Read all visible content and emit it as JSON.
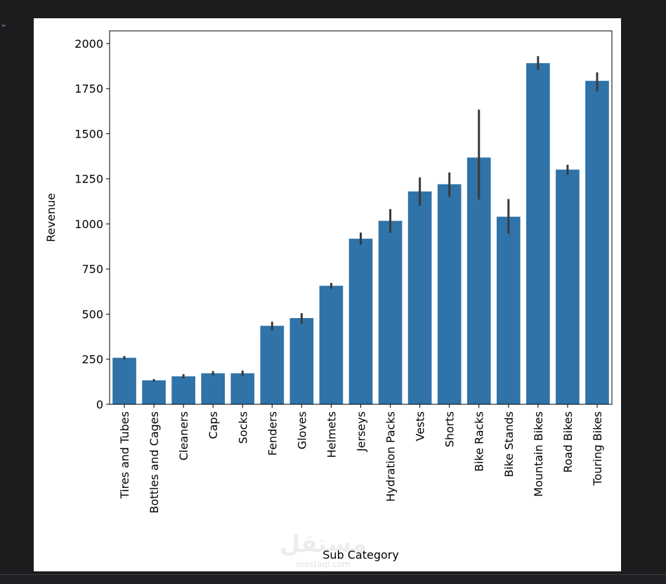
{
  "chart_data": {
    "type": "bar",
    "xlabel": "Sub Category",
    "ylabel": "Revenue",
    "ylim": [
      0,
      2070
    ],
    "yticks": [
      0,
      250,
      500,
      750,
      1000,
      1250,
      1500,
      1750,
      2000
    ],
    "grid": false,
    "error_bars": true,
    "bar_color": "#2f73a8",
    "error_color": "#3a3a3a",
    "categories": [
      "Tires and Tubes",
      "Bottles and Cages",
      "Cleaners",
      "Caps",
      "Socks",
      "Fenders",
      "Gloves",
      "Helmets",
      "Jerseys",
      "Hydration Packs",
      "Vests",
      "Shorts",
      "Bike Racks",
      "Bike Stands",
      "Mountain Bikes",
      "Road Bikes",
      "Touring Bikes"
    ],
    "values": [
      258,
      133,
      155,
      172,
      172,
      435,
      478,
      657,
      918,
      1017,
      1180,
      1220,
      1368,
      1040,
      1891,
      1301,
      1793
    ],
    "error_low": [
      248,
      125,
      143,
      160,
      157,
      410,
      447,
      640,
      885,
      950,
      1100,
      1150,
      1135,
      945,
      1855,
      1272,
      1735
    ],
    "error_high": [
      268,
      140,
      167,
      184,
      187,
      458,
      505,
      673,
      952,
      1082,
      1258,
      1285,
      1633,
      1138,
      1930,
      1328,
      1840
    ]
  },
  "watermark": {
    "arabic": "مستقل",
    "latin": "mostaql.com"
  }
}
